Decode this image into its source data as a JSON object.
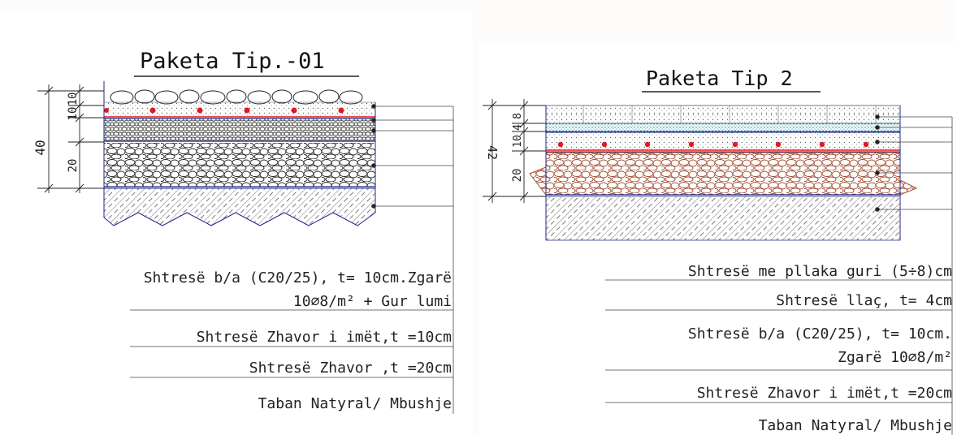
{
  "panels": [
    {
      "title": "Paketa Tip.-01",
      "dimensions": {
        "total": "40",
        "seg1": "10",
        "seg2": "10",
        "seg3": "20"
      },
      "legend": [
        {
          "text": "Shtresë b/a (C20/25), t= 10cm.Zgarë"
        },
        {
          "text": "10⌀8/m² + Gur lumi"
        },
        {
          "text": "Shtresë Zhavor i imët,t =10cm"
        },
        {
          "text": "Shtresë Zhavor ,t =20cm"
        },
        {
          "text": "Taban Natyral/ Mbushje"
        }
      ]
    },
    {
      "title": "Paketa Tip 2",
      "dimensions": {
        "total": "42",
        "seg1": "8",
        "seg2": "4",
        "seg3": "10",
        "seg4": "20"
      },
      "legend": [
        {
          "text": "Shtresë me pllaka guri (5÷8)cm"
        },
        {
          "text": "Shtresë llaç, t= 4cm"
        },
        {
          "text": "Shtresë b/a (C20/25), t= 10cm."
        },
        {
          "text": "Zgarë 10⌀8/m²"
        },
        {
          "text": "Shtresë Zhavor i imët,t =20cm"
        },
        {
          "text": "Taban Natyral/ Mbushje"
        }
      ]
    }
  ],
  "colors": {
    "line": "#1a1a1a",
    "frame": "#1f2a8a",
    "rebar": "#e8161c",
    "gravel": "#a04a2e",
    "mortar": "#1b6f8c"
  }
}
